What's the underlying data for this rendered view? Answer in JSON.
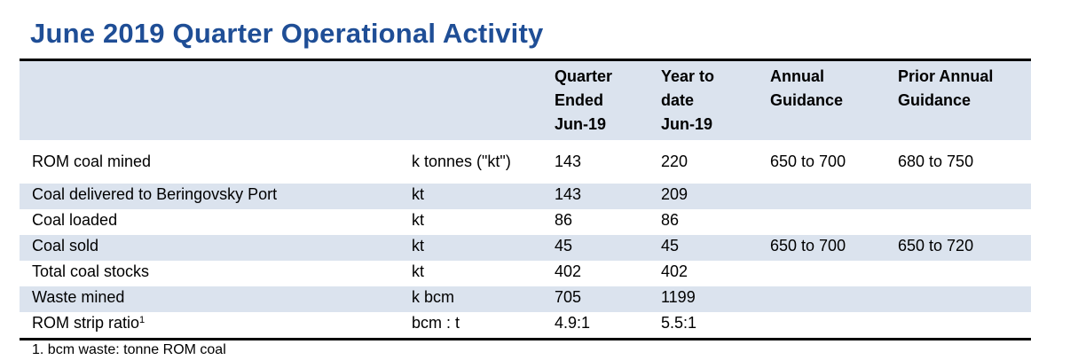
{
  "title": "June 2019 Quarter Operational Activity",
  "headers": {
    "c2": [
      "Quarter",
      "Ended",
      "Jun-19"
    ],
    "c3": [
      "Year to",
      "date",
      "Jun-19"
    ],
    "c4": [
      "Annual",
      "Guidance"
    ],
    "c5": [
      "Prior Annual",
      "Guidance"
    ]
  },
  "rows": [
    {
      "label": "ROM coal mined",
      "sup": "",
      "unit": "k tonnes (\"kt\")",
      "quarter": "143",
      "ytd": "220",
      "annual": "650 to 700",
      "prior": "680 to 750"
    },
    {
      "label": "Coal delivered to Beringovsky Port",
      "sup": "",
      "unit": "kt",
      "quarter": "143",
      "ytd": "209",
      "annual": "",
      "prior": ""
    },
    {
      "label": "Coal loaded",
      "sup": "",
      "unit": "kt",
      "quarter": "86",
      "ytd": "86",
      "annual": "",
      "prior": ""
    },
    {
      "label": "Coal sold",
      "sup": "",
      "unit": "kt",
      "quarter": "45",
      "ytd": "45",
      "annual": "650 to 700",
      "prior": "650 to 720"
    },
    {
      "label": "Total coal stocks",
      "sup": "",
      "unit": "kt",
      "quarter": "402",
      "ytd": "402",
      "annual": "",
      "prior": ""
    },
    {
      "label": "Waste mined",
      "sup": "",
      "unit": "k bcm",
      "quarter": "705",
      "ytd": "1199",
      "annual": "",
      "prior": ""
    },
    {
      "label": "ROM strip ratio",
      "sup": "1",
      "unit": "bcm : t",
      "quarter": "4.9:1",
      "ytd": "5.5:1",
      "annual": "",
      "prior": ""
    }
  ],
  "footnote": "1. bcm waste: tonne ROM coal",
  "colors": {
    "title": "#1f4e96",
    "shade": "#dbe3ee"
  }
}
